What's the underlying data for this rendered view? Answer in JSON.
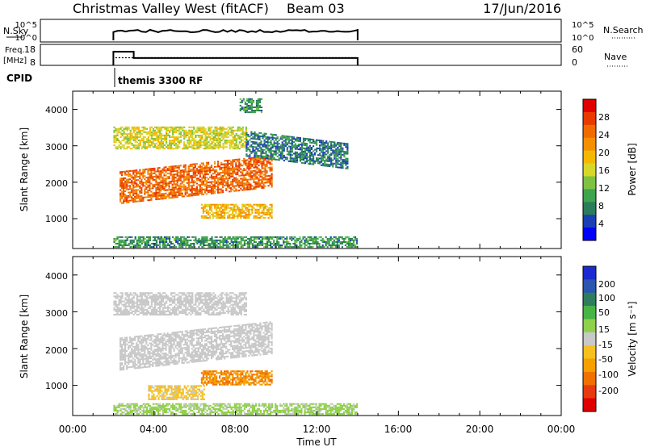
{
  "header": {
    "title": "Christmas Valley West (fitACF)",
    "beam": "Beam 03",
    "date": "17/Jun/2016"
  },
  "strips": {
    "nsky_label": "N.Sky",
    "nsky_ticks": [
      "10^5",
      "10^0"
    ],
    "nsearch_label": "N.Search",
    "freq_label_1": "Freq.",
    "freq_label_2": "[MHz]",
    "freq_ticks": [
      "18",
      "8"
    ],
    "nave_ticks": [
      "60",
      "0"
    ],
    "nave_label": "Nave",
    "cpid_label": "CPID",
    "cpid_text": "themis 3300 RF"
  },
  "axes": {
    "ylabel": "Slant Range [km]",
    "yticks": [
      "4000",
      "3000",
      "2000",
      "1000"
    ],
    "xlabel": "Time UT",
    "xticks": [
      "00:00",
      "04:00",
      "08:00",
      "12:00",
      "16:00",
      "20:00",
      "00:00"
    ]
  },
  "colorbars": {
    "power": {
      "label": "Power [dB]",
      "ticks": [
        "28",
        "24",
        "20",
        "16",
        "12",
        "8",
        "4"
      ],
      "colors": [
        "#0000ff",
        "#1a3fb4",
        "#2a7d5a",
        "#3da54c",
        "#7fc241",
        "#d7d72a",
        "#f5b800",
        "#f49000",
        "#f06a00",
        "#e93a00",
        "#e00000"
      ]
    },
    "velocity": {
      "label": "Velocity [m s⁻¹]",
      "ticks": [
        "200",
        "100",
        "50",
        "15",
        "-15",
        "-50",
        "-100",
        "-200"
      ],
      "colors": [
        "#1a2ad0",
        "#2a55b0",
        "#2f7d5c",
        "#48b445",
        "#8fd14a",
        "#c8c8c8",
        "#f5c020",
        "#f5a000",
        "#f07000",
        "#e83a10",
        "#e00000"
      ]
    }
  },
  "chart_data": {
    "type": "heatmap",
    "title": "Christmas Valley West (fitACF)",
    "xlabel": "Time UT",
    "ylabel": "Slant Range [km]",
    "xlim_hours": [
      0,
      24
    ],
    "ylim_km": [
      180,
      4500
    ],
    "time_coverage_hours": [
      2.0,
      14.0
    ],
    "power_panel": {
      "colorbar_label": "Power [dB]",
      "colorbar_range_db": [
        0,
        32
      ],
      "features": [
        {
          "name": "upper band",
          "t_start": 2.0,
          "t_end": 8.5,
          "range_km": [
            2900,
            3500
          ],
          "power_db": 16
        },
        {
          "name": "main band",
          "t_start": 2.3,
          "t_end": 9.8,
          "range_km": [
            1500,
            2400
          ],
          "power_db": 26
        },
        {
          "name": "isolated high",
          "t_start": 8.2,
          "t_end": 9.3,
          "range_km": [
            3900,
            4300
          ],
          "power_db": 8
        },
        {
          "name": "descending band",
          "t_start": 8.5,
          "t_end": 13.5,
          "range_km": [
            2700,
            3400
          ],
          "power_db": 6
        },
        {
          "name": "lower patch",
          "t_start": 6.3,
          "t_end": 9.8,
          "range_km": [
            1000,
            1400
          ],
          "power_db": 20
        },
        {
          "name": "near-range echoes",
          "t_start": 2.0,
          "t_end": 14.0,
          "range_km": [
            200,
            500
          ],
          "power_db": 8
        }
      ]
    },
    "velocity_panel": {
      "colorbar_label": "Velocity [m s⁻¹]",
      "colorbar_range": [
        -250,
        250
      ],
      "features": [
        {
          "name": "main band",
          "t_start": 2.3,
          "t_end": 9.8,
          "range_km": [
            1500,
            2400
          ],
          "velocity": 0
        },
        {
          "name": "upper band",
          "t_start": 2.0,
          "t_end": 8.5,
          "range_km": [
            2900,
            3500
          ],
          "velocity": 0
        },
        {
          "name": "lower patch",
          "t_start": 6.3,
          "t_end": 9.8,
          "range_km": [
            1000,
            1400
          ],
          "velocity": -120
        },
        {
          "name": "low band",
          "t_start": 3.7,
          "t_end": 6.5,
          "range_km": [
            600,
            1000
          ],
          "velocity": -40
        },
        {
          "name": "near-range echoes",
          "t_start": 2.0,
          "t_end": 14.0,
          "range_km": [
            200,
            500
          ],
          "velocity": 40
        }
      ]
    },
    "nsky": {
      "t_start": 2.0,
      "t_end": 14.0,
      "level": "approx 10^3"
    },
    "frequency_mhz": [
      {
        "t_start": 2.0,
        "t_end": 3.0,
        "value": 14.5
      },
      {
        "t_start": 3.0,
        "t_end": 14.0,
        "value": 11.5
      }
    ],
    "nave": {
      "t_start": 2.0,
      "t_end": 14.0,
      "value": 22
    }
  }
}
